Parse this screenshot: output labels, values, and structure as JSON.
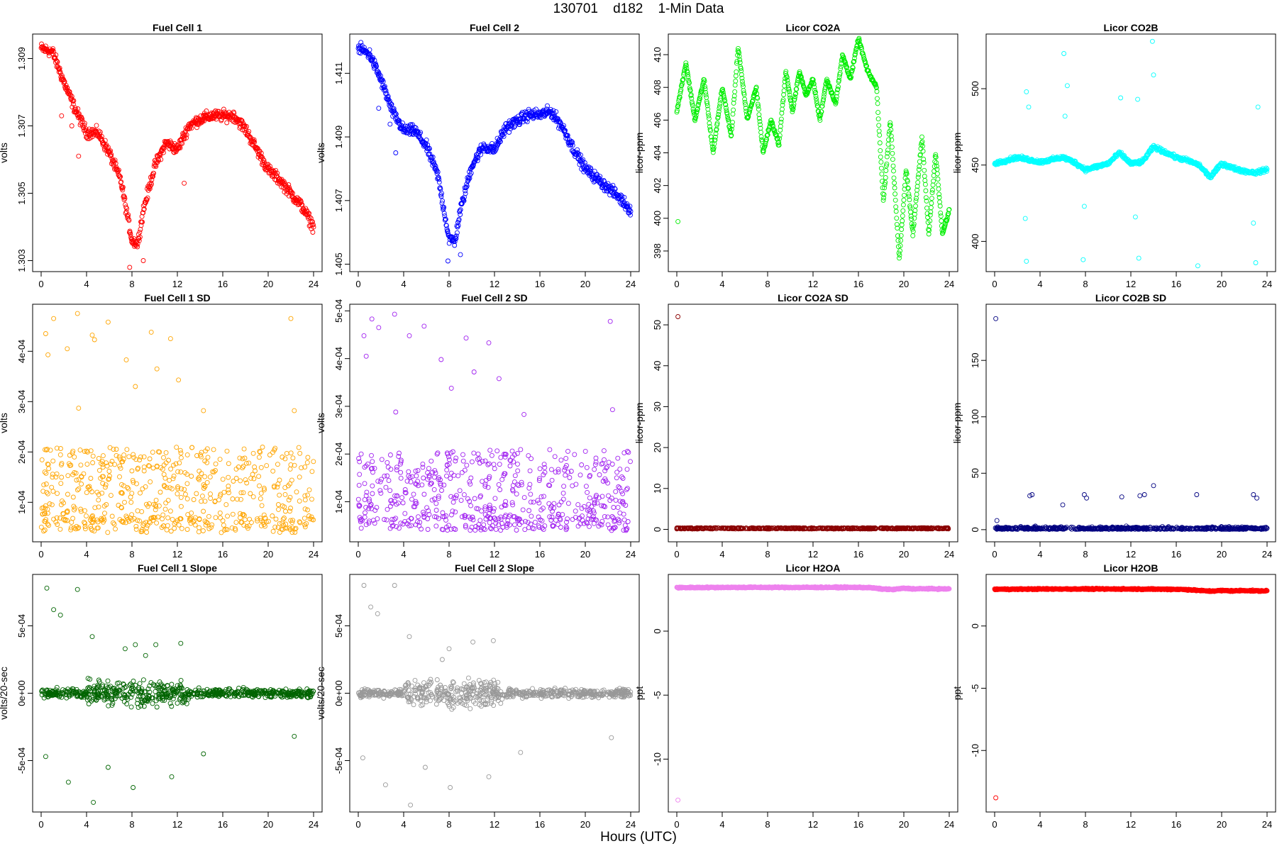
{
  "page": {
    "title": "130701    d182    1-Min Data",
    "xlabel": "Hours (UTC)"
  },
  "chart_data": [
    {
      "id": "fc1",
      "type": "scatter",
      "title": "Fuel Cell 1",
      "ylabel": "volts",
      "color": "#ff0000",
      "xlim": [
        0,
        24
      ],
      "ylim": [
        1.3028,
        1.3096
      ],
      "xticks": [
        0,
        4,
        8,
        12,
        16,
        20,
        24
      ],
      "yticks": [
        1.303,
        1.305,
        1.307,
        1.309
      ],
      "ytick_labels": [
        "1.303",
        "1.305",
        "1.307",
        "1.309"
      ],
      "x": [
        0,
        1,
        2,
        3,
        4,
        5,
        6,
        7,
        7.5,
        8,
        8.5,
        9,
        10,
        11,
        12,
        13,
        14,
        15,
        16,
        17,
        18,
        19,
        20,
        21,
        22,
        23,
        24
      ],
      "y": [
        1.3093,
        1.3092,
        1.3083,
        1.3075,
        1.3068,
        1.3068,
        1.3062,
        1.3054,
        1.3045,
        1.3036,
        1.3035,
        1.3045,
        1.3058,
        1.3065,
        1.3063,
        1.307,
        1.3072,
        1.3073,
        1.3073,
        1.3073,
        1.3069,
        1.3063,
        1.3057,
        1.3054,
        1.305,
        1.3046,
        1.304
      ],
      "outliers": [
        [
          1.8,
          1.3073
        ],
        [
          2.7,
          1.307
        ],
        [
          7.8,
          1.3028
        ],
        [
          9.0,
          1.303
        ],
        [
          12.6,
          1.3053
        ],
        [
          3.3,
          1.3061
        ]
      ]
    },
    {
      "id": "fc2",
      "type": "scatter",
      "title": "Fuel Cell 2",
      "ylabel": "volts",
      "color": "#0000ff",
      "xlim": [
        0,
        24
      ],
      "ylim": [
        1.4049,
        1.4121
      ],
      "xticks": [
        0,
        4,
        8,
        12,
        16,
        20,
        24
      ],
      "yticks": [
        1.405,
        1.407,
        1.409,
        1.411
      ],
      "ytick_labels": [
        "1.405",
        "1.407",
        "1.409",
        "1.411"
      ],
      "x": [
        0,
        1,
        2,
        3,
        4,
        5,
        6,
        7,
        7.5,
        8,
        8.5,
        9,
        10,
        11,
        12,
        13,
        14,
        15,
        16,
        17,
        18,
        19,
        20,
        21,
        22,
        23,
        24
      ],
      "y": [
        1.4118,
        1.4116,
        1.4108,
        1.4098,
        1.4092,
        1.4092,
        1.4087,
        1.4078,
        1.4068,
        1.4058,
        1.4057,
        1.4067,
        1.4081,
        1.4087,
        1.4086,
        1.4093,
        1.4095,
        1.4097,
        1.4097,
        1.4098,
        1.4093,
        1.4086,
        1.408,
        1.4077,
        1.4074,
        1.4071,
        1.4067
      ],
      "outliers": [
        [
          1.8,
          1.4099
        ],
        [
          2.8,
          1.4094
        ],
        [
          7.9,
          1.4051
        ],
        [
          9.0,
          1.4053
        ],
        [
          3.3,
          1.4085
        ]
      ]
    },
    {
      "id": "co2a",
      "type": "scatter",
      "title": "Licor CO2A",
      "ylabel": "licor-ppm",
      "color": "#00ee00",
      "xlim": [
        0,
        24
      ],
      "ylim": [
        397,
        411
      ],
      "xticks": [
        0,
        4,
        8,
        12,
        16,
        20,
        24
      ],
      "yticks": [
        398,
        400,
        402,
        404,
        406,
        408,
        410
      ],
      "ytick_labels": [
        "398",
        "400",
        "402",
        "404",
        "406",
        "408",
        "410"
      ],
      "x": [
        0,
        0.8,
        1.6,
        2.4,
        3.2,
        4,
        4.8,
        5.4,
        6.2,
        7,
        7.6,
        8.3,
        9,
        9.6,
        10.2,
        10.8,
        11.4,
        12,
        12.6,
        13.2,
        14,
        14.6,
        15.3,
        16,
        16.8,
        17.6,
        18.2,
        18.8,
        19.6,
        20.2,
        20.8,
        21.6,
        22.2,
        22.8,
        23.4,
        24
      ],
      "y": [
        406.5,
        409.5,
        406,
        408.5,
        404,
        408,
        405,
        410.5,
        406,
        408,
        404,
        406,
        404.5,
        409,
        406.5,
        409,
        407.5,
        408.5,
        406,
        408.5,
        407,
        410,
        408.5,
        411,
        409,
        408,
        401,
        406,
        397.5,
        403,
        399,
        405,
        399,
        404,
        399,
        400.5
      ],
      "outliers": [
        [
          0.1,
          399.8
        ]
      ]
    },
    {
      "id": "co2b",
      "type": "scatter",
      "title": "Licor CO2B",
      "ylabel": "licor-ppm",
      "color": "#00ffff",
      "xlim": [
        0,
        24
      ],
      "ylim": [
        383,
        533
      ],
      "xticks": [
        0,
        4,
        8,
        12,
        16,
        20,
        24
      ],
      "yticks": [
        400,
        450,
        500
      ],
      "ytick_labels": [
        "400",
        "450",
        "500"
      ],
      "x": [
        0,
        2,
        4,
        6,
        7,
        8,
        10,
        11,
        12,
        13,
        14,
        16,
        17,
        18,
        19,
        20,
        21,
        22,
        23,
        24
      ],
      "y": [
        451,
        455,
        452,
        455,
        452,
        447,
        451,
        458,
        451,
        452,
        462,
        455,
        453,
        450,
        442,
        451,
        448,
        446,
        445,
        447
      ],
      "outliers": [
        [
          6.1,
          523
        ],
        [
          6.4,
          502
        ],
        [
          11.1,
          494
        ],
        [
          13.9,
          531
        ],
        [
          14.0,
          509
        ],
        [
          2.8,
          498
        ],
        [
          3.0,
          488
        ],
        [
          12.6,
          493
        ],
        [
          2.7,
          415
        ],
        [
          2.8,
          387
        ],
        [
          7.8,
          388
        ],
        [
          12.4,
          416
        ],
        [
          12.7,
          389
        ],
        [
          17.9,
          384
        ],
        [
          23.0,
          386
        ],
        [
          6.2,
          482
        ],
        [
          7.9,
          423
        ],
        [
          22.8,
          412
        ],
        [
          23.2,
          488
        ]
      ]
    },
    {
      "id": "fc1sd",
      "type": "scatter",
      "title": "Fuel Cell 1 SD",
      "ylabel": "volts",
      "color": "#ffa500",
      "xlim": [
        0,
        24
      ],
      "ylim": [
        3e-05,
        0.000485
      ],
      "xticks": [
        0,
        4,
        8,
        12,
        16,
        20,
        24
      ],
      "yticks": [
        0.0001,
        0.0002,
        0.0003,
        0.0004
      ],
      "ytick_labels": [
        "1e-04",
        "2e-04",
        "3e-04",
        "4e-04"
      ],
      "points": 600,
      "base": 0.00015,
      "spread": 0.00015,
      "outliers": [
        [
          0.4,
          0.000435
        ],
        [
          1.1,
          0.000465
        ],
        [
          0.6,
          0.000393
        ],
        [
          2.3,
          0.000405
        ],
        [
          3.2,
          0.000475
        ],
        [
          4.5,
          0.000432
        ],
        [
          4.7,
          0.000423
        ],
        [
          5.9,
          0.000458
        ],
        [
          7.5,
          0.000383
        ],
        [
          8.3,
          0.00033
        ],
        [
          9.7,
          0.000438
        ],
        [
          10.2,
          0.000365
        ],
        [
          11.4,
          0.000425
        ],
        [
          12.1,
          0.000343
        ],
        [
          14.3,
          0.000282
        ],
        [
          22.0,
          0.000465
        ],
        [
          22.3,
          0.000282
        ],
        [
          3.3,
          0.000287
        ]
      ]
    },
    {
      "id": "fc2sd",
      "type": "scatter",
      "title": "Fuel Cell 2 SD",
      "ylabel": "volts",
      "color": "#a020f0",
      "xlim": [
        0,
        24
      ],
      "ylim": [
        2.5e-05,
        0.000505
      ],
      "xticks": [
        0,
        4,
        8,
        12,
        16,
        20,
        24
      ],
      "yticks": [
        0.0001,
        0.0002,
        0.0003,
        0.0004,
        0.0005
      ],
      "ytick_labels": [
        "1e-04",
        "2e-04",
        "3e-04",
        "4e-04",
        "5e-04"
      ],
      "points": 600,
      "base": 0.00015,
      "spread": 0.00015,
      "outliers": [
        [
          0.5,
          0.000448
        ],
        [
          1.2,
          0.000483
        ],
        [
          0.7,
          0.000405
        ],
        [
          1.8,
          0.000465
        ],
        [
          3.2,
          0.000493
        ],
        [
          4.5,
          0.000448
        ],
        [
          5.8,
          0.000468
        ],
        [
          7.3,
          0.000398
        ],
        [
          8.2,
          0.000338
        ],
        [
          9.5,
          0.000443
        ],
        [
          10.2,
          0.000372
        ],
        [
          11.5,
          0.000433
        ],
        [
          12.4,
          0.000358
        ],
        [
          14.6,
          0.000283
        ],
        [
          22.2,
          0.000478
        ],
        [
          22.4,
          0.000293
        ],
        [
          3.3,
          0.000288
        ]
      ]
    },
    {
      "id": "co2asd",
      "type": "scatter",
      "title": "Licor CO2A SD",
      "ylabel": "licor-ppm",
      "color": "#8b0000",
      "xlim": [
        0,
        24
      ],
      "ylim": [
        -2,
        54
      ],
      "xticks": [
        0,
        4,
        8,
        12,
        16,
        20,
        24
      ],
      "yticks": [
        0,
        10,
        20,
        30,
        40,
        50
      ],
      "ytick_labels": [
        "0",
        "10",
        "20",
        "30",
        "40",
        "50"
      ],
      "points": 600,
      "base": 0.15,
      "spread": 0.2,
      "outliers": [
        [
          0.1,
          52
        ]
      ]
    },
    {
      "id": "co2bsd",
      "type": "scatter",
      "title": "Licor CO2B SD",
      "ylabel": "licor-ppm",
      "color": "#000080",
      "xlim": [
        0,
        24
      ],
      "ylim": [
        -7,
        196
      ],
      "xticks": [
        0,
        4,
        8,
        12,
        16,
        20,
        24
      ],
      "yticks": [
        0,
        50,
        100,
        150
      ],
      "ytick_labels": [
        "0",
        "50",
        "100",
        "150"
      ],
      "points": 600,
      "base": 1.5,
      "spread": 3,
      "outliers": [
        [
          0.1,
          187
        ],
        [
          3.1,
          30
        ],
        [
          3.3,
          31
        ],
        [
          6.0,
          22
        ],
        [
          7.9,
          31
        ],
        [
          8.1,
          28
        ],
        [
          11.2,
          29
        ],
        [
          12.8,
          30
        ],
        [
          13.2,
          31
        ],
        [
          14.0,
          39
        ],
        [
          17.8,
          31
        ],
        [
          22.8,
          31
        ],
        [
          23.1,
          28
        ],
        [
          0.2,
          8
        ]
      ]
    },
    {
      "id": "fc1slope",
      "type": "scatter",
      "title": "Fuel Cell 1 Slope",
      "ylabel": "volts/20-sec",
      "color": "#006400",
      "xlim": [
        0,
        24
      ],
      "ylim": [
        -0.00085,
        0.00085
      ],
      "xticks": [
        0,
        4,
        8,
        12,
        16,
        20,
        24
      ],
      "yticks": [
        -0.0005,
        0,
        0.0005
      ],
      "ytick_labels": [
        "-5e-04",
        "0e+00",
        "5e-04"
      ],
      "points": 700,
      "base": 0,
      "spread": 8e-05,
      "outliers": [
        [
          0.5,
          0.00078
        ],
        [
          1.1,
          0.00062
        ],
        [
          1.7,
          0.00058
        ],
        [
          3.2,
          0.00077
        ],
        [
          4.5,
          0.00042
        ],
        [
          7.4,
          0.00033
        ],
        [
          8.3,
          0.00036
        ],
        [
          9.2,
          0.00028
        ],
        [
          10.1,
          0.00036
        ],
        [
          12.3,
          0.00037
        ],
        [
          0.4,
          -0.00047
        ],
        [
          2.4,
          -0.00066
        ],
        [
          4.6,
          -0.00081
        ],
        [
          5.9,
          -0.00055
        ],
        [
          8.1,
          -0.0007
        ],
        [
          11.5,
          -0.00062
        ],
        [
          14.3,
          -0.00045
        ],
        [
          22.3,
          -0.00032
        ]
      ]
    },
    {
      "id": "fc2slope",
      "type": "scatter",
      "title": "Fuel Cell 2 Slope",
      "ylabel": "volts/20-sec",
      "color": "#999999",
      "xlim": [
        0,
        24
      ],
      "ylim": [
        -0.00085,
        0.00085
      ],
      "xticks": [
        0,
        4,
        8,
        12,
        16,
        20,
        24
      ],
      "yticks": [
        -0.0005,
        0,
        0.0005
      ],
      "ytick_labels": [
        "-5e-04",
        "0e+00",
        "5e-04"
      ],
      "points": 700,
      "base": 0,
      "spread": 8e-05,
      "outliers": [
        [
          0.5,
          0.0008
        ],
        [
          1.1,
          0.00064
        ],
        [
          1.7,
          0.00059
        ],
        [
          3.2,
          0.0008
        ],
        [
          4.5,
          0.00042
        ],
        [
          7.4,
          0.00025
        ],
        [
          8.0,
          0.00033
        ],
        [
          10.1,
          0.00038
        ],
        [
          11.9,
          0.00039
        ],
        [
          0.4,
          -0.00048
        ],
        [
          2.4,
          -0.00068
        ],
        [
          4.6,
          -0.00083
        ],
        [
          5.9,
          -0.00055
        ],
        [
          8.1,
          -0.0007
        ],
        [
          11.5,
          -0.00062
        ],
        [
          14.3,
          -0.00044
        ],
        [
          22.3,
          -0.00033
        ]
      ]
    },
    {
      "id": "h2oa",
      "type": "scatter",
      "title": "Licor H2OA",
      "ylabel": "ppt",
      "color": "#ee82ee",
      "xlim": [
        0,
        24
      ],
      "ylim": [
        -13.8,
        4.1
      ],
      "xticks": [
        0,
        4,
        8,
        12,
        16,
        20,
        24
      ],
      "yticks": [
        -10,
        -5,
        0
      ],
      "ytick_labels": [
        "-10",
        "-5",
        "0"
      ],
      "x": [
        0,
        4,
        8,
        12,
        16,
        17,
        18,
        19,
        20,
        21,
        22,
        23,
        24
      ],
      "y": [
        3.4,
        3.42,
        3.42,
        3.42,
        3.42,
        3.4,
        3.3,
        3.25,
        3.35,
        3.3,
        3.32,
        3.3,
        3.3
      ],
      "outliers": [
        [
          0.1,
          -13.2
        ]
      ]
    },
    {
      "id": "h2ob",
      "type": "scatter",
      "title": "Licor H2OB",
      "ylabel": "ppt",
      "color": "#ff0000",
      "xlim": [
        0,
        24
      ],
      "ylim": [
        -14.6,
        3.8
      ],
      "xticks": [
        0,
        4,
        8,
        12,
        16,
        20,
        24
      ],
      "yticks": [
        -10,
        -5,
        0
      ],
      "ytick_labels": [
        "-10",
        "-5",
        "0"
      ],
      "x": [
        0,
        4,
        8,
        12,
        16,
        17,
        18,
        19,
        20,
        21,
        22,
        23,
        24
      ],
      "y": [
        2.95,
        2.97,
        2.97,
        2.97,
        2.95,
        2.92,
        2.85,
        2.8,
        2.85,
        2.82,
        2.85,
        2.82,
        2.82
      ],
      "outliers": [
        [
          0.1,
          -13.8
        ]
      ]
    }
  ]
}
